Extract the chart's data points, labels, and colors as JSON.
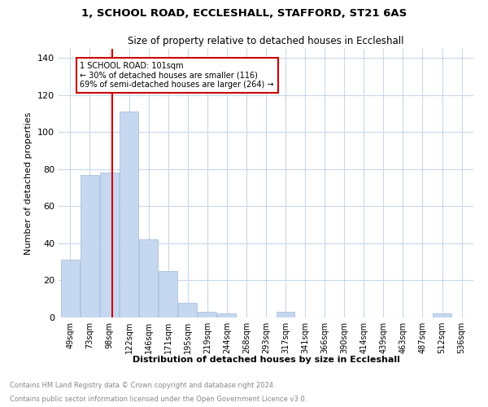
{
  "title1": "1, SCHOOL ROAD, ECCLESHALL, STAFFORD, ST21 6AS",
  "title2": "Size of property relative to detached houses in Eccleshall",
  "xlabel": "Distribution of detached houses by size in Eccleshall",
  "ylabel": "Number of detached properties",
  "bar_labels": [
    "49sqm",
    "73sqm",
    "98sqm",
    "122sqm",
    "146sqm",
    "171sqm",
    "195sqm",
    "219sqm",
    "244sqm",
    "268sqm",
    "293sqm",
    "317sqm",
    "341sqm",
    "366sqm",
    "390sqm",
    "414sqm",
    "439sqm",
    "463sqm",
    "487sqm",
    "512sqm",
    "536sqm"
  ],
  "bar_values": [
    31,
    77,
    78,
    111,
    42,
    25,
    8,
    3,
    2,
    0,
    0,
    3,
    0,
    0,
    0,
    0,
    0,
    0,
    0,
    2,
    0
  ],
  "bar_color": "#c5d8f0",
  "bar_edge_color": "#a0b8d8",
  "vline_color": "#cc0000",
  "annotation_text": "1 SCHOOL ROAD: 101sqm\n← 30% of detached houses are smaller (116)\n69% of semi-detached houses are larger (264) →",
  "annotation_box_color": "#cc0000",
  "ylim": [
    0,
    145
  ],
  "yticks": [
    0,
    20,
    40,
    60,
    80,
    100,
    120,
    140
  ],
  "footer1": "Contains HM Land Registry data © Crown copyright and database right 2024.",
  "footer2": "Contains public sector information licensed under the Open Government Licence v3.0.",
  "bg_color": "#ffffff",
  "grid_color": "#c8d8e8"
}
